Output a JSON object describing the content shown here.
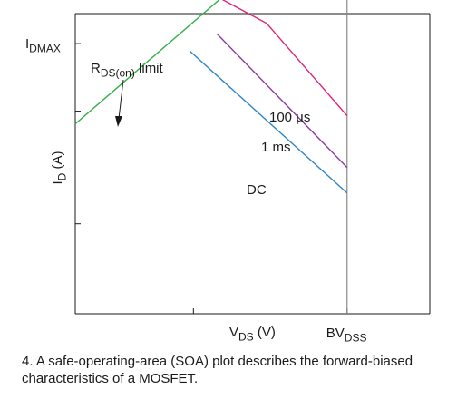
{
  "chart_data": {
    "type": "line",
    "xlabel": {
      "main": "V",
      "sub": "DS",
      "unit": " (V)"
    },
    "ylabel": {
      "main": "I",
      "sub": "D",
      "unit": " (A)"
    },
    "x_ticks": [
      {
        "value": 1,
        "label": ""
      },
      {
        "value": 2.3,
        "label": {
          "main": "BV",
          "sub": "DSS"
        }
      }
    ],
    "y_ticks": [
      {
        "value": 3.6,
        "label": {
          "main": "I",
          "sub": "DMAX"
        }
      },
      {
        "value": 2.7,
        "label": ""
      },
      {
        "value": 1.2,
        "label": ""
      }
    ],
    "xlim": [
      0,
      3
    ],
    "ylim": [
      0,
      4
    ],
    "series": [
      {
        "name": "RDS(on) limit",
        "label": {
          "main": "R",
          "sub": "DS(on)",
          "rest": " limit"
        },
        "color": "#33b04a",
        "points": [
          [
            0,
            2.53
          ],
          [
            1.23,
            4.2
          ]
        ]
      },
      {
        "name": "100 µs",
        "label": {
          "main": "100 µs"
        },
        "color": "#e0237d",
        "points": [
          [
            1.23,
            4.2
          ],
          [
            1.62,
            3.87
          ],
          [
            2.3,
            2.64
          ]
        ]
      },
      {
        "name": "1 ms",
        "label": {
          "main": "1 ms"
        },
        "color": "#8b3aa0",
        "points": [
          [
            1.2,
            3.73
          ],
          [
            2.3,
            1.95
          ]
        ]
      },
      {
        "name": "DC",
        "label": {
          "main": "DC"
        },
        "color": "#2f86c8",
        "points": [
          [
            0.97,
            3.5
          ],
          [
            2.3,
            1.61
          ]
        ]
      }
    ],
    "boundary": {
      "color": "#8a8a8a",
      "points": [
        [
          1.23,
          4.2
        ],
        [
          2.3,
          4.2
        ],
        [
          2.3,
          0
        ]
      ]
    }
  },
  "caption": "4. A safe-operating-area (SOA) plot describes the forward-biased characteristics of a MOSFET."
}
